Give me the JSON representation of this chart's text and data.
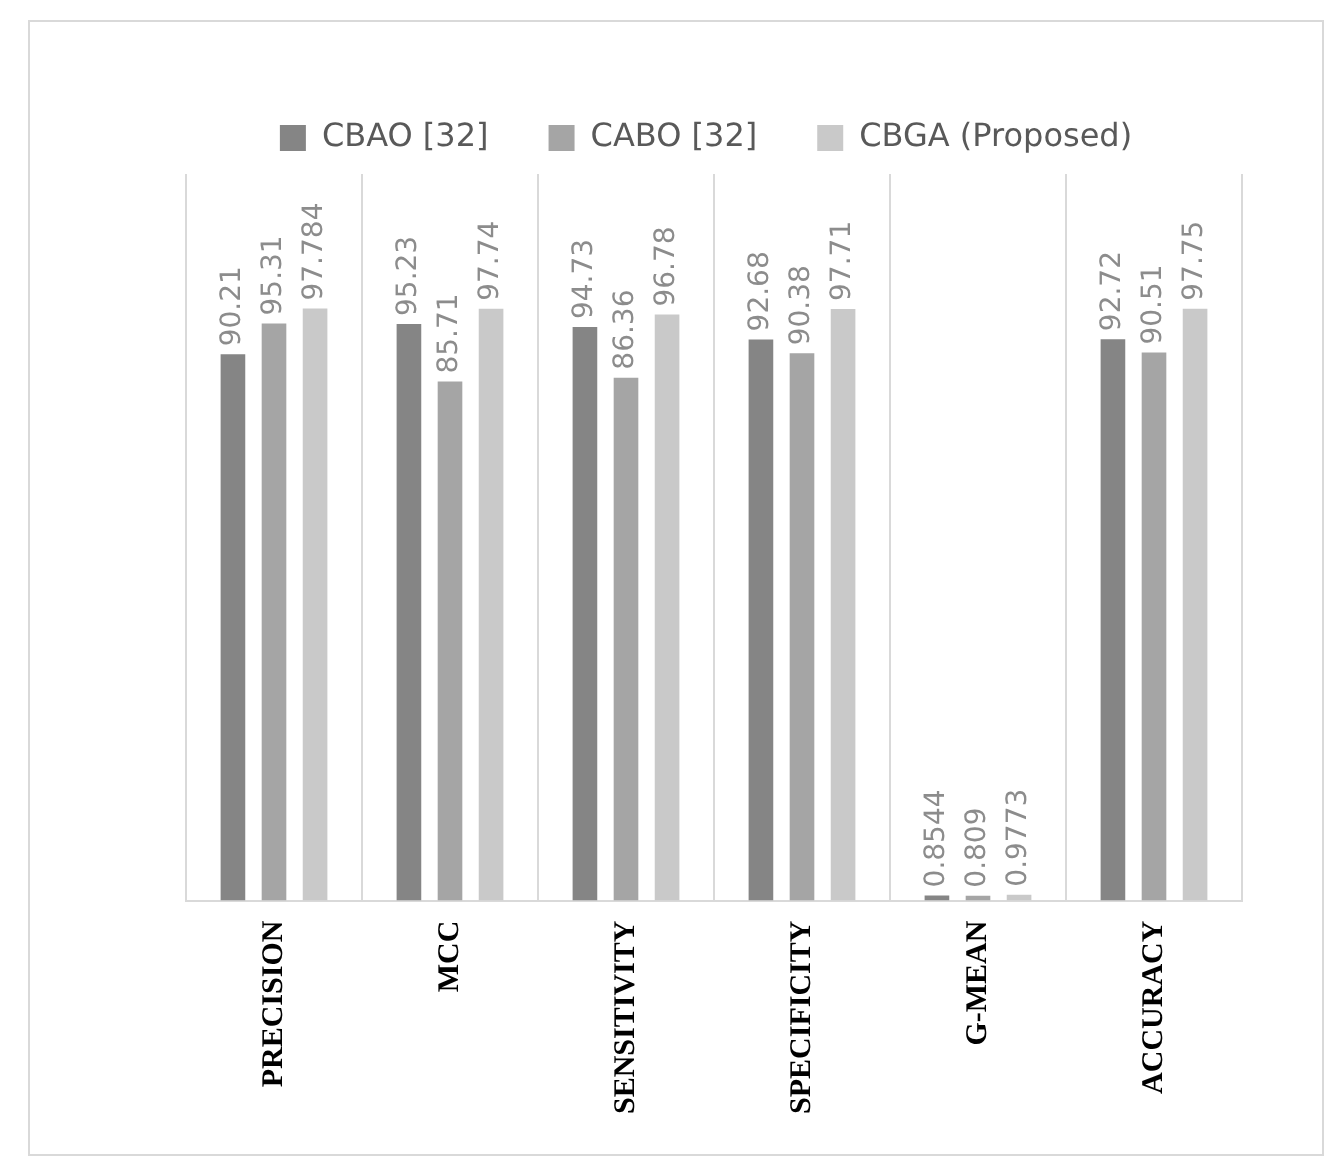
{
  "chart_data": {
    "type": "bar",
    "relative": false,
    "categories": [
      "PRECISION",
      "MCC",
      "SENSITIVITY",
      "SPECIFICITY",
      "G-MEAN",
      "ACCURACY"
    ],
    "series": [
      {
        "name": "CBAO [32]",
        "color": "#858585",
        "values": [
          90.21,
          95.23,
          94.73,
          92.68,
          0.8544,
          92.72
        ]
      },
      {
        "name": "CABO [32]",
        "color": "#a5a5a5",
        "values": [
          95.31,
          85.71,
          86.36,
          90.38,
          0.809,
          90.51
        ]
      },
      {
        "name": "CBGA (Proposed)",
        "color": "#c9c9c9",
        "values": [
          97.784,
          97.74,
          96.78,
          97.71,
          0.9773,
          97.75
        ]
      }
    ],
    "data_labels": true,
    "grid": "x",
    "legend": "top"
  }
}
